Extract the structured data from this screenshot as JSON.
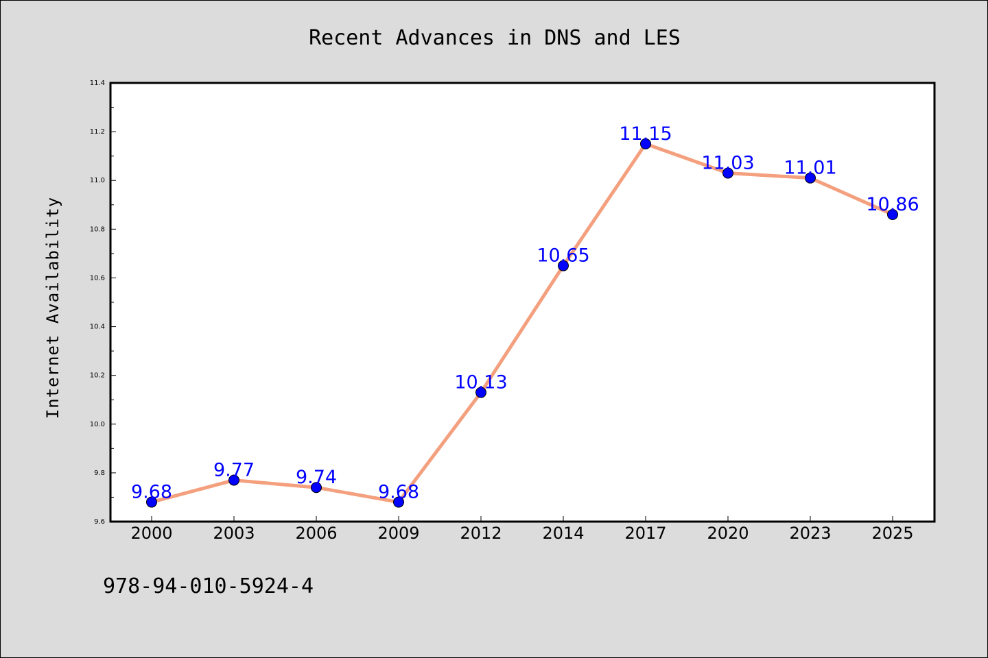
{
  "chart_data": {
    "type": "line",
    "title": "Recent Advances in DNS and LES",
    "xlabel": "",
    "ylabel": "Internet Availability",
    "categories": [
      "2000",
      "2003",
      "2006",
      "2009",
      "2012",
      "2014",
      "2017",
      "2020",
      "2023",
      "2025"
    ],
    "values": [
      9.68,
      9.77,
      9.74,
      9.68,
      10.13,
      10.65,
      11.15,
      11.03,
      11.01,
      10.86
    ],
    "data_labels": [
      "9.68",
      "9.77",
      "9.74",
      "9.68",
      "10.13",
      "10.65",
      "11.15",
      "11.03",
      "11.01",
      "10.86"
    ],
    "ylim": [
      9.6,
      11.4
    ],
    "yticks": [
      "9.6",
      "9.8",
      "10.0",
      "10.2",
      "10.4",
      "10.6",
      "10.8",
      "11.0",
      "11.2",
      "11.4"
    ],
    "grid": false,
    "legend": "none",
    "colors": {
      "line": "#f4a07e",
      "marker": "#0000ff",
      "label": "#0000ff",
      "plot_background": "#ffffff",
      "figure_background": "#dcdcdc"
    }
  },
  "footer": {
    "isbn": "978-94-010-5924-4"
  }
}
